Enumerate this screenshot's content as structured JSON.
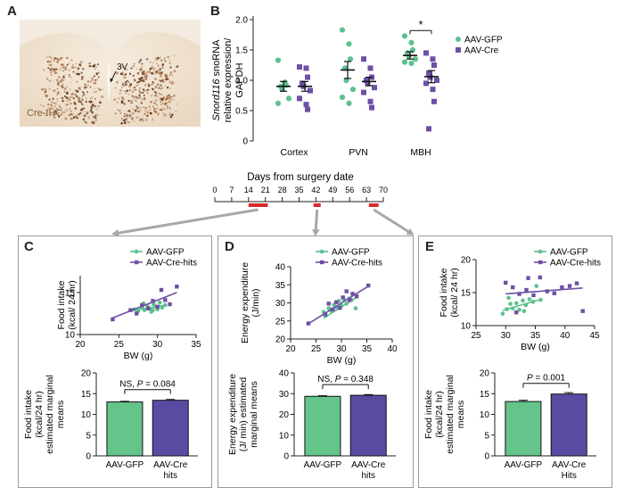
{
  "panels": {
    "a": "A",
    "b": "B",
    "c": "C",
    "d": "D",
    "e": "E"
  },
  "colors": {
    "gfp": "#5cc08f",
    "cre": "#6e4fa6",
    "bar_gfp": "#64c48a",
    "bar_cre": "#5a4aa2",
    "surgery": "#d62a2a",
    "arrow": "#a8a8a8"
  },
  "ihc": {
    "label": "Cre-IHC",
    "ventricle": "3V"
  },
  "timeline": {
    "title": "Days from surgery date",
    "ticks": [
      0,
      7,
      14,
      21,
      28,
      35,
      42,
      49,
      56,
      63,
      70
    ],
    "measurement_windows": [
      [
        14,
        22
      ],
      [
        41,
        44
      ],
      [
        64,
        68
      ]
    ]
  },
  "chart_data": [
    {
      "id": "B",
      "type": "scatter",
      "ylabel_italic": "Snord116",
      "ylabel_rest": " snoRNA",
      "ylabel_line2": "relative expression/",
      "ylabel_line3": "GAPDH",
      "categories": [
        "Cortex",
        "PVN",
        "MBH"
      ],
      "ylim": [
        0,
        2.0
      ],
      "yticks": [
        "0",
        "0.5",
        "1.0",
        "1.5",
        "2.0"
      ],
      "legend": [
        "AAV-GFP",
        "AAV-Cre"
      ],
      "significance": "*",
      "series": [
        {
          "name": "AAV-GFP",
          "mean": [
            0.9,
            1.17,
            1.41
          ],
          "sem": [
            0.08,
            0.14,
            0.06
          ],
          "points": [
            [
              1.33,
              0.97,
              0.92,
              0.9,
              0.85,
              0.7,
              0.62
            ],
            [
              1.83,
              1.6,
              1.35,
              1.2,
              1.0,
              0.85,
              0.72,
              0.62
            ],
            [
              1.73,
              1.62,
              1.5,
              1.45,
              1.4,
              1.35,
              1.3,
              1.28
            ]
          ]
        },
        {
          "name": "AAV-Cre",
          "mean": [
            0.9,
            0.98,
            1.06
          ],
          "sem": [
            0.08,
            0.07,
            0.1
          ],
          "points": [
            [
              1.22,
              1.2,
              1.05,
              0.95,
              0.9,
              0.83,
              0.7,
              0.6,
              0.52
            ],
            [
              1.35,
              1.2,
              1.05,
              1.0,
              0.95,
              0.88,
              0.8,
              0.65,
              0.55
            ],
            [
              1.45,
              1.35,
              1.25,
              1.12,
              1.05,
              1.0,
              0.95,
              0.85,
              0.65,
              0.2
            ]
          ]
        }
      ]
    },
    {
      "id": "C-scatter",
      "type": "scatter",
      "xlabel": "BW (g)",
      "ylabel_line1": "Food intake",
      "ylabel_line2": "(kcal/ 24 hr)",
      "xlim": [
        20,
        35
      ],
      "ylim": [
        10,
        17
      ],
      "xticks": [
        "20",
        "25",
        "30",
        "35"
      ],
      "yticks": [
        "10",
        "15"
      ],
      "legend": [
        "AAV-GFP",
        "AAV-Cre-hits"
      ],
      "series": [
        {
          "name": "AAV-GFP",
          "fit": [
            [
              26.5,
              12.8
            ],
            [
              31,
              13.5
            ]
          ],
          "x": [
            27,
            27.5,
            28,
            28.3,
            28.7,
            29,
            29.2,
            29.5,
            29.8,
            30,
            30.3,
            30.6,
            31,
            28.2,
            29.4
          ],
          "y": [
            13.0,
            12.8,
            13.2,
            12.9,
            13.4,
            13.1,
            12.7,
            13.6,
            13.3,
            13.0,
            13.8,
            13.2,
            13.5,
            13.7,
            12.9
          ]
        },
        {
          "name": "AAV-Cre-hits",
          "fit": [
            [
              24,
              11.9
            ],
            [
              32.5,
              15.0
            ]
          ],
          "x": [
            24.2,
            26.5,
            27.3,
            28,
            28.8,
            29.4,
            30,
            30.5,
            31,
            31.6,
            32.5
          ],
          "y": [
            11.8,
            12.9,
            12.5,
            13.5,
            13.1,
            14.0,
            13.3,
            15.3,
            14.1,
            13.6,
            15.7
          ]
        }
      ]
    },
    {
      "id": "C-bar",
      "type": "bar",
      "ylabel_line1": "Food intake",
      "ylabel_line2": "(kcal/24 hr)",
      "ylabel_line3": "estimated marginal",
      "ylabel_line4": "means",
      "categories": [
        "AAV-GFP",
        "AAV-Cre hits"
      ],
      "values": [
        13.0,
        13.4
      ],
      "errors": [
        0.15,
        0.2
      ],
      "ylim": [
        0,
        20
      ],
      "yticks": [
        "0",
        "5",
        "10",
        "15",
        "20"
      ],
      "stat_prefix": "NS, ",
      "stat_p": "P",
      "stat_value": " = 0.084"
    },
    {
      "id": "D-scatter",
      "type": "scatter",
      "xlabel": "BW (g)",
      "ylabel_line1": "Energy expenditure",
      "ylabel_line2": "(J/min)",
      "xlim": [
        20,
        40
      ],
      "ylim": [
        20,
        40
      ],
      "xticks": [
        "20",
        "25",
        "30",
        "35",
        "40"
      ],
      "yticks": [
        "20",
        "25",
        "30",
        "35",
        "40"
      ],
      "legend": [
        "AAV-GFP",
        "AAV-Cre-hits"
      ],
      "series": [
        {
          "name": "AAV-GFP",
          "fit": [
            [
              26.5,
              25.8
            ],
            [
              33,
              31.5
            ]
          ],
          "x": [
            26.5,
            27,
            27.5,
            28,
            28.5,
            29,
            29.5,
            30,
            30.5,
            31,
            31.5,
            32,
            32.8
          ],
          "y": [
            27.5,
            26.5,
            28.5,
            27.8,
            29.5,
            28.8,
            30.5,
            29.2,
            31.0,
            29.8,
            31.2,
            30.8,
            28.5
          ]
        },
        {
          "name": "AAV-Cre-hits",
          "fit": [
            [
              23.5,
              24.2
            ],
            [
              35.5,
              34.8
            ]
          ],
          "x": [
            23.5,
            26.8,
            27.5,
            28.3,
            29,
            29.7,
            30.3,
            31,
            31.6,
            32.2,
            33,
            35.3
          ],
          "y": [
            24.3,
            26.8,
            29.8,
            28.2,
            30.2,
            28.6,
            31.5,
            33.2,
            30.8,
            32.5,
            31.8,
            34.8
          ]
        }
      ]
    },
    {
      "id": "D-bar",
      "type": "bar",
      "ylabel_line1": "Energy expenditure",
      "ylabel_line2": "(J/ min) estimated",
      "ylabel_line3": "marginal means",
      "categories": [
        "AAV-GFP",
        "AAV-Cre hits"
      ],
      "values": [
        28.7,
        29.2
      ],
      "errors": [
        0.3,
        0.35
      ],
      "ylim": [
        0,
        40
      ],
      "yticks": [
        "0",
        "10",
        "20",
        "30",
        "40"
      ],
      "stat_prefix": "NS, ",
      "stat_p": "P",
      "stat_value": " = 0.348"
    },
    {
      "id": "E-scatter",
      "type": "scatter",
      "xlabel": "BW (g)",
      "ylabel_line1": "Food intake",
      "ylabel_line2": "(kcal/ 24 hr)",
      "xlim": [
        25,
        45
      ],
      "ylim": [
        10,
        20
      ],
      "xticks": [
        "25",
        "30",
        "35",
        "40",
        "45"
      ],
      "yticks": [
        "10",
        "15",
        "20"
      ],
      "legend": [
        "AAV-GFP",
        "AAV-Cre-hits"
      ],
      "series": [
        {
          "name": "AAV-GFP",
          "fit": [
            [
              29.5,
              12.3
            ],
            [
              36,
              14.0
            ]
          ],
          "x": [
            29.5,
            30.2,
            30.8,
            31.2,
            31.8,
            32.3,
            32.9,
            33.4,
            34,
            34.6,
            35.2,
            35.9,
            30.5,
            33.1
          ],
          "y": [
            11.8,
            12.5,
            13.3,
            12.6,
            13.4,
            12.4,
            13.8,
            13.1,
            14.0,
            13.6,
            16.0,
            13.9,
            14.2,
            12.2
          ]
        },
        {
          "name": "AAV-Cre-hits",
          "fit": [
            [
              30,
              14.8
            ],
            [
              43,
              15.7
            ]
          ],
          "x": [
            30,
            31.2,
            32.3,
            33.5,
            34.7,
            35.8,
            37,
            38.2,
            39.5,
            40.8,
            42,
            43,
            31.8,
            33.8
          ],
          "y": [
            16.5,
            15.8,
            14.8,
            15.4,
            14.6,
            17.3,
            15.2,
            14.9,
            15.8,
            16.0,
            16.4,
            12.2,
            12.0,
            17.2
          ]
        }
      ]
    },
    {
      "id": "E-bar",
      "type": "bar",
      "ylabel_line1": "Food intake",
      "ylabel_line2": "(kcal/24 hr)",
      "ylabel_line3": "estimated marginal",
      "ylabel_line4": "means",
      "categories": [
        "AAV-GFP",
        "AAV-Cre Hits"
      ],
      "values": [
        13.1,
        14.9
      ],
      "errors": [
        0.3,
        0.35
      ],
      "ylim": [
        0,
        20
      ],
      "yticks": [
        "0",
        "5",
        "10",
        "15",
        "20"
      ],
      "stat_prefix": "",
      "stat_p": "P",
      "stat_value": " = 0.001"
    }
  ]
}
